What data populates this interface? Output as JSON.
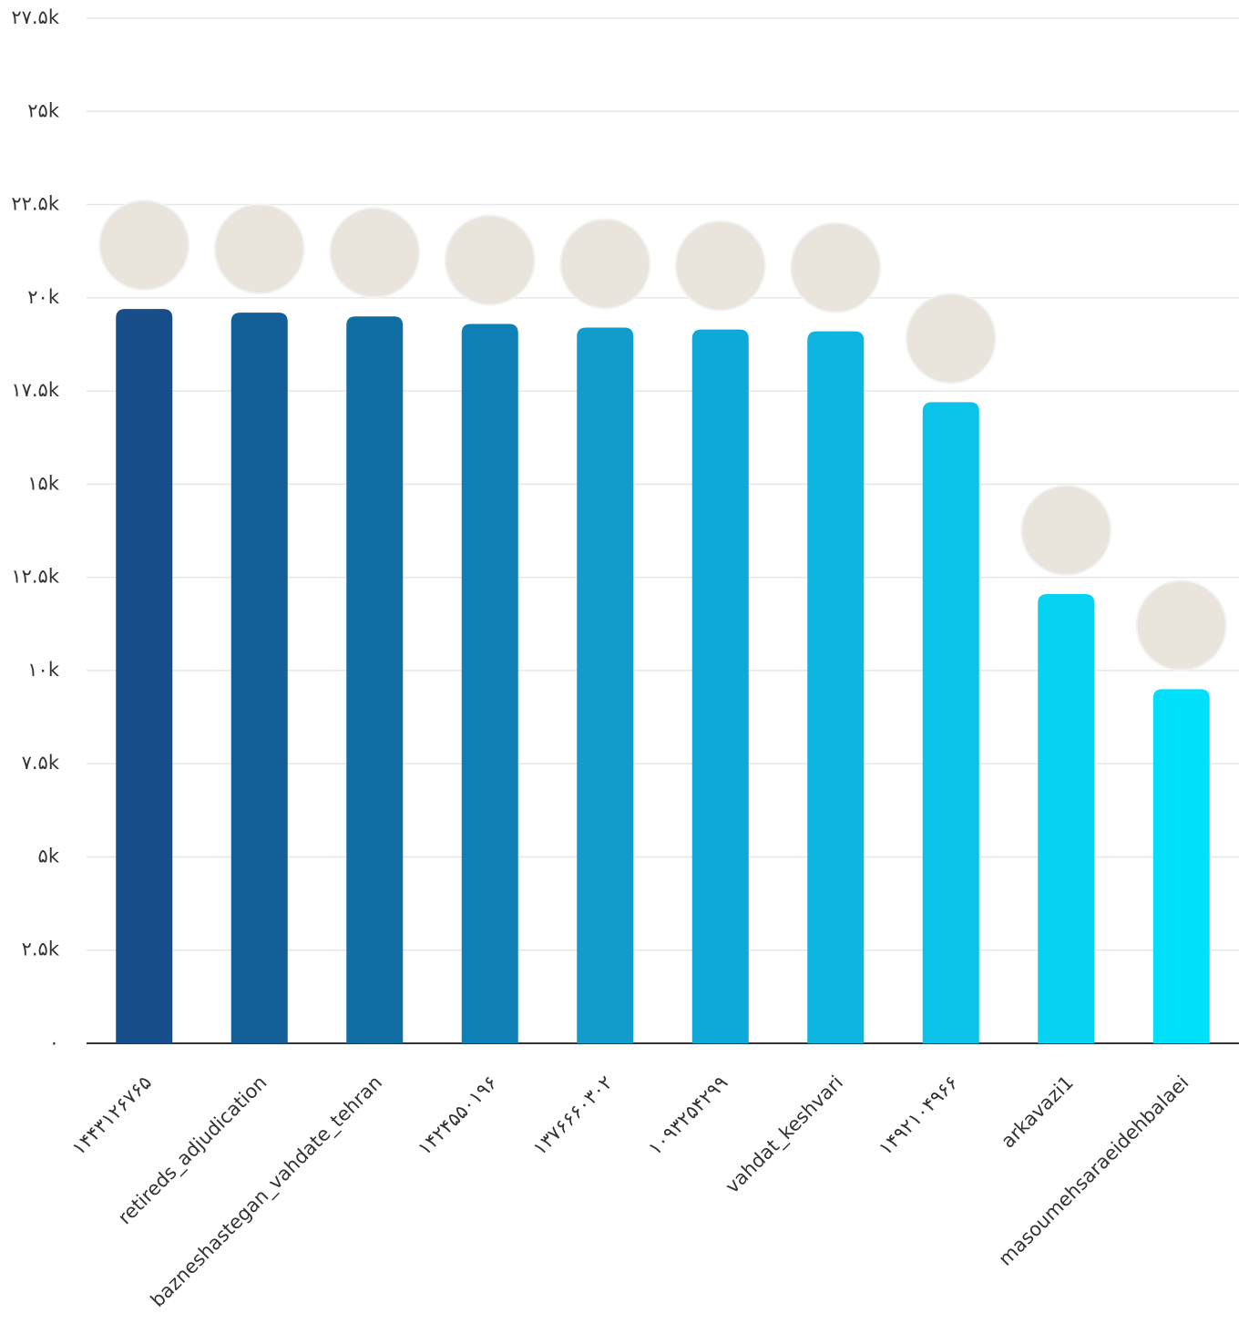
{
  "chart_data": {
    "type": "bar",
    "categories": [
      "۱۴۴۳۱۲۶۷۶۵",
      "retireds_adjudication",
      "bazneshastegan_vahdate_tehran",
      "۱۴۲۴۵۵۰۱۹۶",
      "۱۳۷۶۶۶۰۳۰۲",
      "۱۰۹۳۲۵۴۲۹۹",
      "vahdat_keshvari",
      "۱۴۹۲۱۰۴۹۶۶",
      "arkavazi1",
      "masoumehsaraeidehbalaei"
    ],
    "values": [
      19700,
      19600,
      19500,
      19300,
      19200,
      19150,
      19100,
      17200,
      12050,
      9500
    ],
    "colors": [
      "#174e8a",
      "#145f98",
      "#116ea3",
      "#0f80b6",
      "#119ccb",
      "#0fa9d9",
      "#0db5e0",
      "#0bc3e8",
      "#06d3f2",
      "#00e0fa"
    ],
    "ylim": [
      0,
      27500
    ],
    "yticks": [
      {
        "value": 0,
        "label": "۰"
      },
      {
        "value": 2500,
        "label": "۲.۵k"
      },
      {
        "value": 5000,
        "label": "۵k"
      },
      {
        "value": 7500,
        "label": "۷.۵k"
      },
      {
        "value": 10000,
        "label": "۱۰k"
      },
      {
        "value": 12500,
        "label": "۱۲.۵k"
      },
      {
        "value": 15000,
        "label": "۱۵k"
      },
      {
        "value": 17500,
        "label": "۱۷.۵k"
      },
      {
        "value": 20000,
        "label": "۲۰k"
      },
      {
        "value": 22500,
        "label": "۲۲.۵k"
      },
      {
        "value": 25000,
        "label": "۲۵k"
      },
      {
        "value": 27500,
        "label": "۲۷.۵k"
      }
    ],
    "grid": true
  }
}
